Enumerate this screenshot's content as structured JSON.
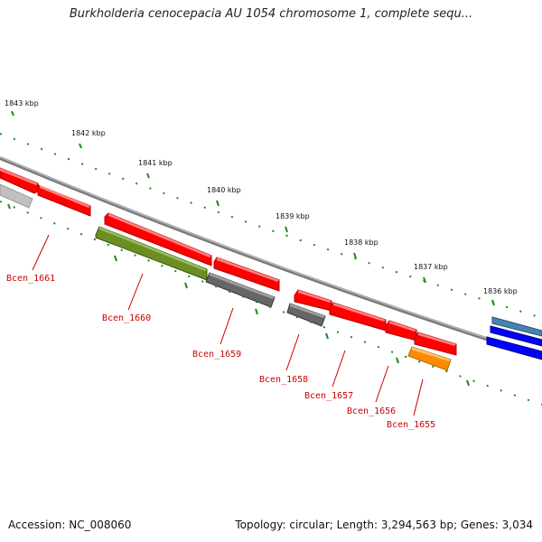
{
  "header": {
    "title": "Burkholderia cenocepacia AU 1054 chromosome 1, complete sequ..."
  },
  "footer": {
    "accession": "Accession: NC_008060",
    "summary": "Topology: circular; Length: 3,294,563 bp; Genes: 3,034"
  },
  "scale": {
    "ticks": [
      {
        "label": "1843 kbp"
      },
      {
        "label": "1842 kbp"
      },
      {
        "label": "1841 kbp"
      },
      {
        "label": "1840 kbp"
      },
      {
        "label": "1839 kbp"
      },
      {
        "label": "1838 kbp"
      },
      {
        "label": "1837 kbp"
      },
      {
        "label": "1836 kbp"
      }
    ]
  },
  "genes": [
    {
      "label": "Bcen_1661"
    },
    {
      "label": "Bcen_1660"
    },
    {
      "label": "Bcen_1659"
    },
    {
      "label": "Bcen_1658"
    },
    {
      "label": "Bcen_1657"
    },
    {
      "label": "Bcen_1656"
    },
    {
      "label": "Bcen_1655"
    }
  ],
  "colors": {
    "cds": "#ff0000",
    "olive": "#6b8e23",
    "gray": "#666666",
    "orange": "#ff8c00",
    "blue": "#0000ff",
    "steel": "#4682b4",
    "tick": "#1a8a1a",
    "label": "#cc0000",
    "backbone": "#808080"
  }
}
